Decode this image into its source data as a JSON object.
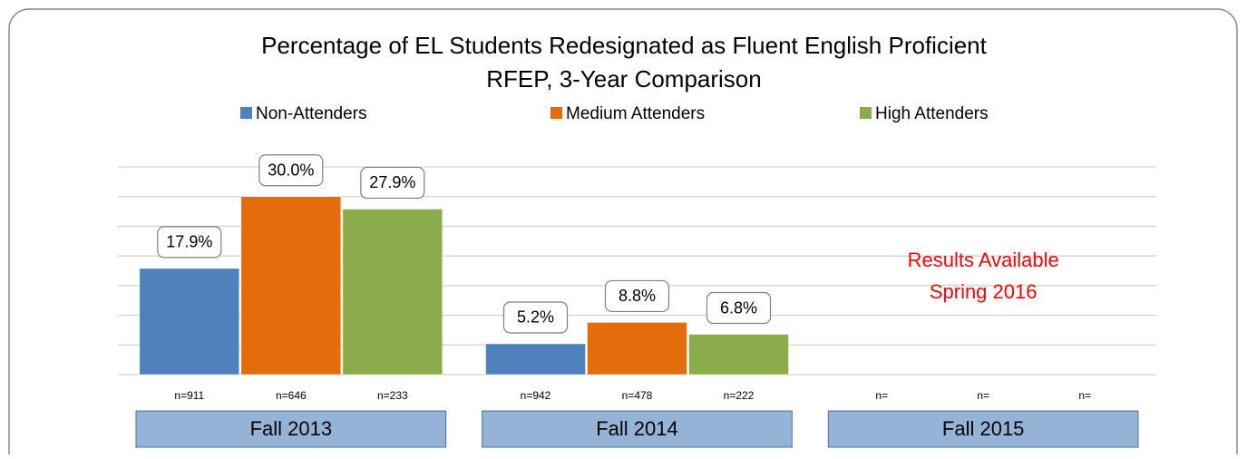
{
  "chart_data": {
    "type": "bar",
    "title": [
      "Percentage of EL Students Redesignated as Fluent English Proficient",
      "RFEP, 3-Year Comparison"
    ],
    "categories": [
      "Fall 2013",
      "Fall 2014",
      "Fall 2015"
    ],
    "series": [
      {
        "name": "Non-Attenders",
        "color": "#4f81bd",
        "values": [
          17.9,
          5.2,
          null
        ],
        "value_labels": [
          "17.9%",
          "5.2%",
          null
        ],
        "n_labels": [
          "n=911",
          "n=942",
          "n="
        ]
      },
      {
        "name": "Medium Attenders",
        "color": "#e46c0a",
        "values": [
          30.0,
          8.8,
          null
        ],
        "value_labels": [
          "30.0%",
          "8.8%",
          null
        ],
        "n_labels": [
          "n=646",
          "n=478",
          "n="
        ]
      },
      {
        "name": "High Attenders",
        "color": "#8aac4a",
        "values": [
          27.9,
          6.8,
          null
        ],
        "value_labels": [
          "27.9%",
          "6.8%",
          null
        ],
        "n_labels": [
          "n=233",
          "n=222",
          "n="
        ]
      }
    ],
    "annotation": [
      "Results Available",
      "Spring 2016"
    ],
    "annotation_color": "#ff0000",
    "ylim": [
      0,
      35
    ],
    "yticks": [
      0,
      5,
      10,
      15,
      20,
      25,
      30,
      35
    ],
    "grid": true,
    "legend": "top"
  }
}
